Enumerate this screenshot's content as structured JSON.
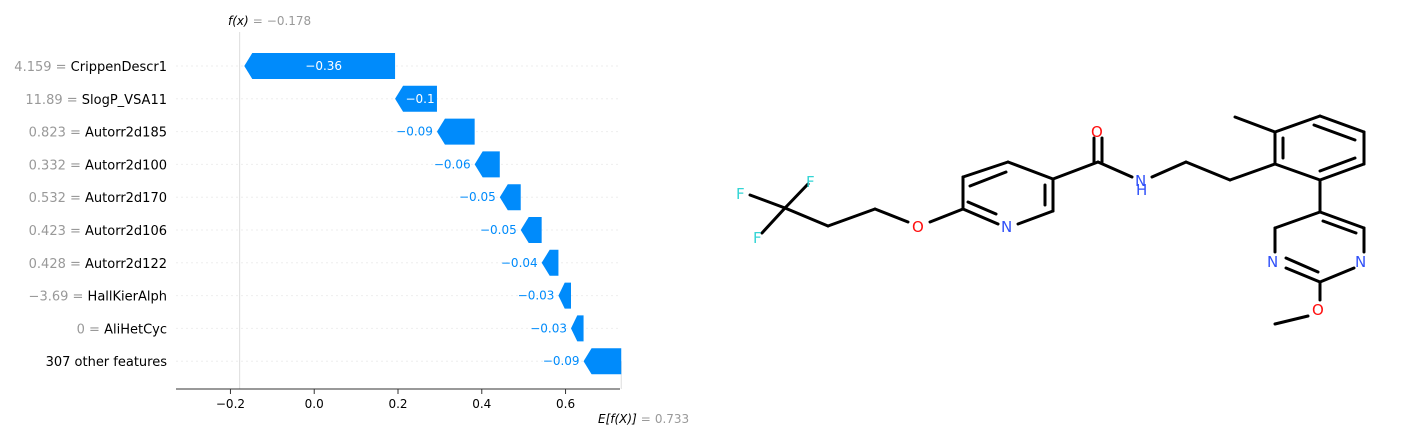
{
  "chart_data": {
    "type": "waterfall",
    "fx_label": "f(x)",
    "fx_value": "−0.178",
    "ex_label": "E[f(X)]",
    "ex_value": "0.733",
    "fx": -0.178,
    "base_value": 0.733,
    "xlim": [
      -0.33,
      0.73
    ],
    "xticks": [
      -0.2,
      0.0,
      0.2,
      0.4,
      0.6
    ],
    "xtick_labels": [
      "−0.2",
      "0.0",
      "0.2",
      "0.4",
      "0.6"
    ],
    "negative_color": "#008bfb",
    "features": [
      {
        "value": "4.159",
        "name": "CrippenDescr1",
        "contribution": -0.36,
        "label": "−0.36"
      },
      {
        "value": "11.89",
        "name": "SlogP_VSA11",
        "contribution": -0.1,
        "label": "−0.1"
      },
      {
        "value": "0.823",
        "name": "Autorr2d185",
        "contribution": -0.09,
        "label": "−0.09"
      },
      {
        "value": "0.332",
        "name": "Autorr2d100",
        "contribution": -0.06,
        "label": "−0.06"
      },
      {
        "value": "0.532",
        "name": "Autorr2d170",
        "contribution": -0.05,
        "label": "−0.05"
      },
      {
        "value": "0.423",
        "name": "Autorr2d106",
        "contribution": -0.05,
        "label": "−0.05"
      },
      {
        "value": "0.428",
        "name": "Autorr2d122",
        "contribution": -0.04,
        "label": "−0.04"
      },
      {
        "value": "−3.69",
        "name": "HallKierAlph",
        "contribution": -0.03,
        "label": "−0.03"
      },
      {
        "value": "0",
        "name": "AliHetCyc",
        "contribution": -0.03,
        "label": "−0.03"
      },
      {
        "value": "",
        "name": "307 other features",
        "contribution": -0.09,
        "label": "−0.09"
      }
    ]
  },
  "molecule": {
    "atoms": {
      "f1": "F",
      "f2": "F",
      "f3": "F",
      "o_ether": "O",
      "n_pyridine": "N",
      "o_carbonyl": "O",
      "n_amide": "N",
      "h_amide": "H",
      "n_pyr_left": "N",
      "n_pyr_right": "N",
      "o_methoxy": "O"
    },
    "colors": {
      "bond": "#000000",
      "oxygen": "#ff0d0d",
      "nitrogen": "#3050f8",
      "fluorine": "#33d4d4"
    }
  }
}
